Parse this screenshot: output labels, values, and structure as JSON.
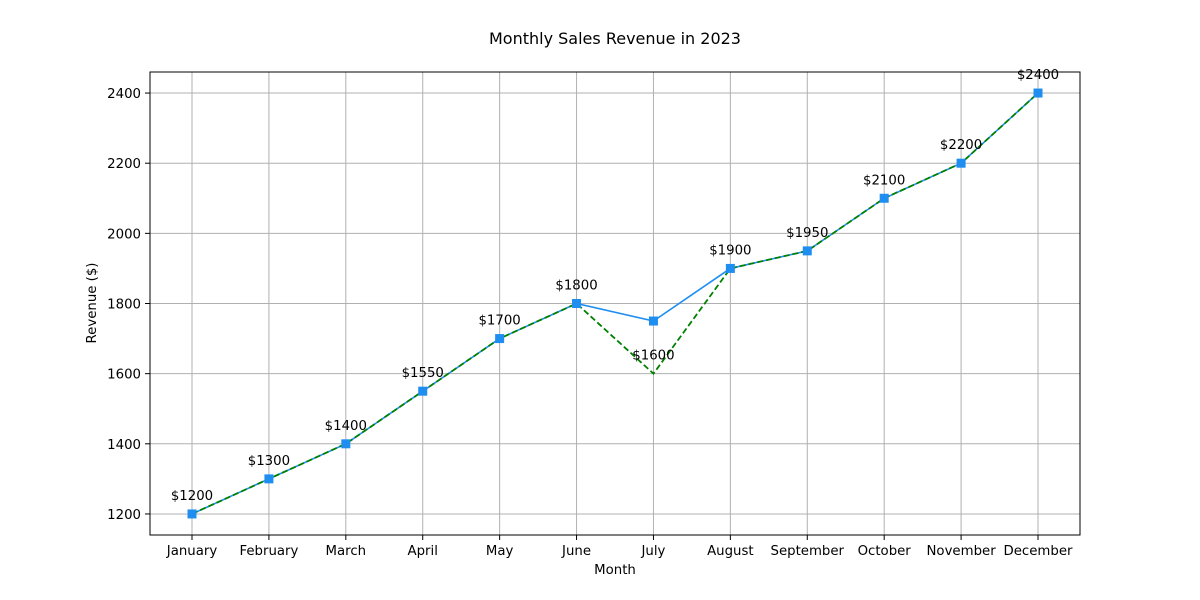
{
  "chart_data": {
    "type": "line",
    "title": "Monthly Sales Revenue in 2023",
    "xlabel": "Month",
    "ylabel": "Revenue ($)",
    "categories": [
      "January",
      "February",
      "March",
      "April",
      "May",
      "June",
      "July",
      "August",
      "September",
      "October",
      "November",
      "December"
    ],
    "series": [
      {
        "values": [
          1200,
          1300,
          1400,
          1550,
          1700,
          1800,
          1750,
          1900,
          1950,
          2100,
          2200,
          2400
        ],
        "color": "#1f8ef1",
        "line_style": "solid",
        "marker": "square"
      },
      {
        "values": [
          1200,
          1300,
          1400,
          1550,
          1700,
          1800,
          1600,
          1900,
          1950,
          2100,
          2200,
          2400
        ],
        "color": "#008000",
        "line_style": "dashed",
        "marker": "none"
      }
    ],
    "data_labels": [
      "$1200",
      "$1300",
      "$1400",
      "$1550",
      "$1700",
      "$1800",
      "$1600",
      "$1900",
      "$1950",
      "$2100",
      "$2200",
      "$2400"
    ],
    "data_label_values": [
      1200,
      1300,
      1400,
      1550,
      1700,
      1800,
      1600,
      1900,
      1950,
      2100,
      2200,
      2400
    ],
    "ylim": [
      1140,
      2460
    ],
    "yticks": [
      1200,
      1400,
      1600,
      1800,
      2000,
      2200,
      2400
    ],
    "ytick_labels": [
      "1200",
      "1400",
      "1600",
      "1800",
      "2000",
      "2200",
      "2400"
    ],
    "grid": true,
    "grid_color": "#b0b0b0"
  }
}
